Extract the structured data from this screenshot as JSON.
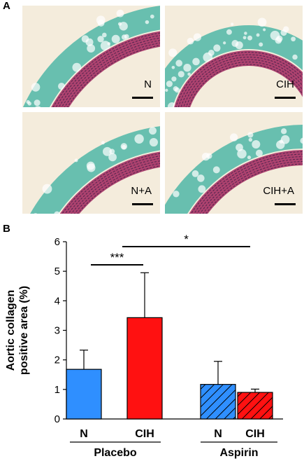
{
  "panel_a": {
    "letter": "A",
    "images": [
      {
        "label": "N"
      },
      {
        "label": "CIH"
      },
      {
        "label": "N+A"
      },
      {
        "label": "CIH+A"
      }
    ]
  },
  "panel_b": {
    "letter": "B"
  },
  "colors": {
    "blue": "#2f8fff",
    "red": "#ff1111",
    "teal": "#3ab0a0",
    "magenta": "#a0245c",
    "beige": "#f4ecdc"
  },
  "chart_data": {
    "type": "bar",
    "ylabel": "Aortic collagen\npositive area (%)",
    "ylim": [
      0,
      6
    ],
    "yticks": [
      "0",
      "1",
      "2",
      "3",
      "4",
      "5",
      "6"
    ],
    "categories": [
      "N",
      "CIH",
      "N",
      "CIH"
    ],
    "groups": [
      {
        "name": "Placebo",
        "categories": [
          "N",
          "CIH"
        ]
      },
      {
        "name": "Aspirin",
        "categories": [
          "N",
          "CIH"
        ]
      }
    ],
    "values": [
      1.68,
      3.43,
      1.17,
      0.9
    ],
    "errors": [
      0.65,
      1.52,
      0.78,
      0.11
    ],
    "hatched": [
      false,
      false,
      true,
      true
    ],
    "significance": [
      {
        "from": 0,
        "to": 1,
        "label": "***"
      },
      {
        "from": 1,
        "to": 3,
        "label": "*"
      }
    ]
  }
}
